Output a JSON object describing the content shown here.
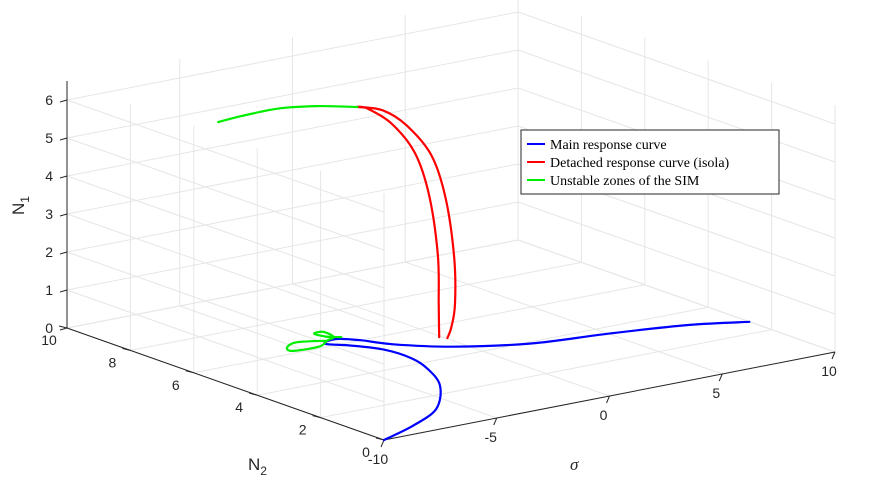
{
  "chart_data": {
    "type": "line",
    "projection": "3d",
    "axes": {
      "x": {
        "label": "σ",
        "range": [
          -10,
          10
        ],
        "ticks": [
          -10,
          -5,
          0,
          5,
          10
        ]
      },
      "y": {
        "label": "N",
        "label_subscript": "2",
        "range": [
          0,
          10
        ],
        "ticks": [
          0,
          2,
          4,
          6,
          8,
          10
        ]
      },
      "z": {
        "label": "N",
        "label_subscript": "1",
        "range": [
          0,
          6.5
        ],
        "ticks": [
          0,
          1,
          2,
          3,
          4,
          5,
          6
        ]
      }
    },
    "grid": true,
    "legend_position": "right",
    "series": [
      {
        "name": "Main response curve",
        "color": "#0000ff",
        "points": [
          [
            -10,
            0,
            0
          ],
          [
            -8,
            0.5,
            0
          ],
          [
            -6,
            1.2,
            0
          ],
          [
            -4,
            2.5,
            0
          ],
          [
            -3,
            3.6,
            0
          ],
          [
            -2.6,
            4.4,
            0
          ],
          [
            -2.7,
            5.2,
            0
          ],
          [
            -3.3,
            5.8,
            0
          ],
          [
            -3.9,
            6.2,
            0
          ],
          [
            -3.2,
            6.35,
            0
          ],
          [
            -2.6,
            6.0,
            0
          ],
          [
            -2.0,
            5.4,
            0
          ],
          [
            -0.5,
            4.6,
            0
          ],
          [
            2,
            3.9,
            0
          ],
          [
            5,
            3.6,
            0
          ],
          [
            8,
            3.2,
            0
          ],
          [
            10,
            2.7,
            0
          ]
        ]
      },
      {
        "name": "Detached response curve (isola)",
        "color": "#ff0000",
        "points": [
          [
            0.05,
            5.15,
            0
          ],
          [
            0.3,
            5.2,
            0.25
          ],
          [
            0.6,
            5.3,
            0.8
          ],
          [
            0.7,
            5.4,
            2
          ],
          [
            0.6,
            5.6,
            3.5
          ],
          [
            0.25,
            5.8,
            4.6
          ],
          [
            -0.5,
            6.05,
            5.4
          ],
          [
            -1.2,
            6.3,
            5.8
          ],
          [
            -1.9,
            6.6,
            5.88
          ],
          [
            -1.5,
            6.55,
            5.8
          ],
          [
            -0.8,
            6.3,
            5.4
          ],
          [
            -0.05,
            6.1,
            4.6
          ],
          [
            0.3,
            5.9,
            3.5
          ],
          [
            0.4,
            5.7,
            2
          ],
          [
            0.3,
            5.6,
            0.8
          ],
          [
            0.1,
            5.45,
            0.2
          ],
          [
            -0.1,
            5.3,
            0
          ]
        ]
      },
      {
        "name": "Unstable zones of the SIM",
        "color": "#00ee00",
        "points": [
          [
            -3.6,
            6.35,
            0
          ],
          [
            -4.6,
            6.6,
            0
          ],
          [
            -5.3,
            6.4,
            0
          ],
          [
            -5.4,
            6.15,
            0
          ],
          [
            -4.3,
            6.1,
            0
          ],
          [
            -3.6,
            6.35,
            0
          ],
          [
            -3.1,
            6.5,
            0
          ],
          [
            -3.0,
            6.9,
            0
          ],
          [
            -3.4,
            6.9,
            0
          ],
          [
            -3.3,
            6.6,
            0
          ],
          [
            -2.9,
            6.4,
            0
          ]
        ]
      },
      {
        "name": "",
        "color": "#00ee00",
        "points": [
          [
            -1.9,
            6.6,
            5.88
          ],
          [
            -3.2,
            6.95,
            5.95
          ],
          [
            -4.5,
            7.2,
            5.97
          ],
          [
            -5.8,
            7.45,
            5.85
          ],
          [
            -6.6,
            7.65,
            5.72
          ]
        ]
      }
    ]
  }
}
